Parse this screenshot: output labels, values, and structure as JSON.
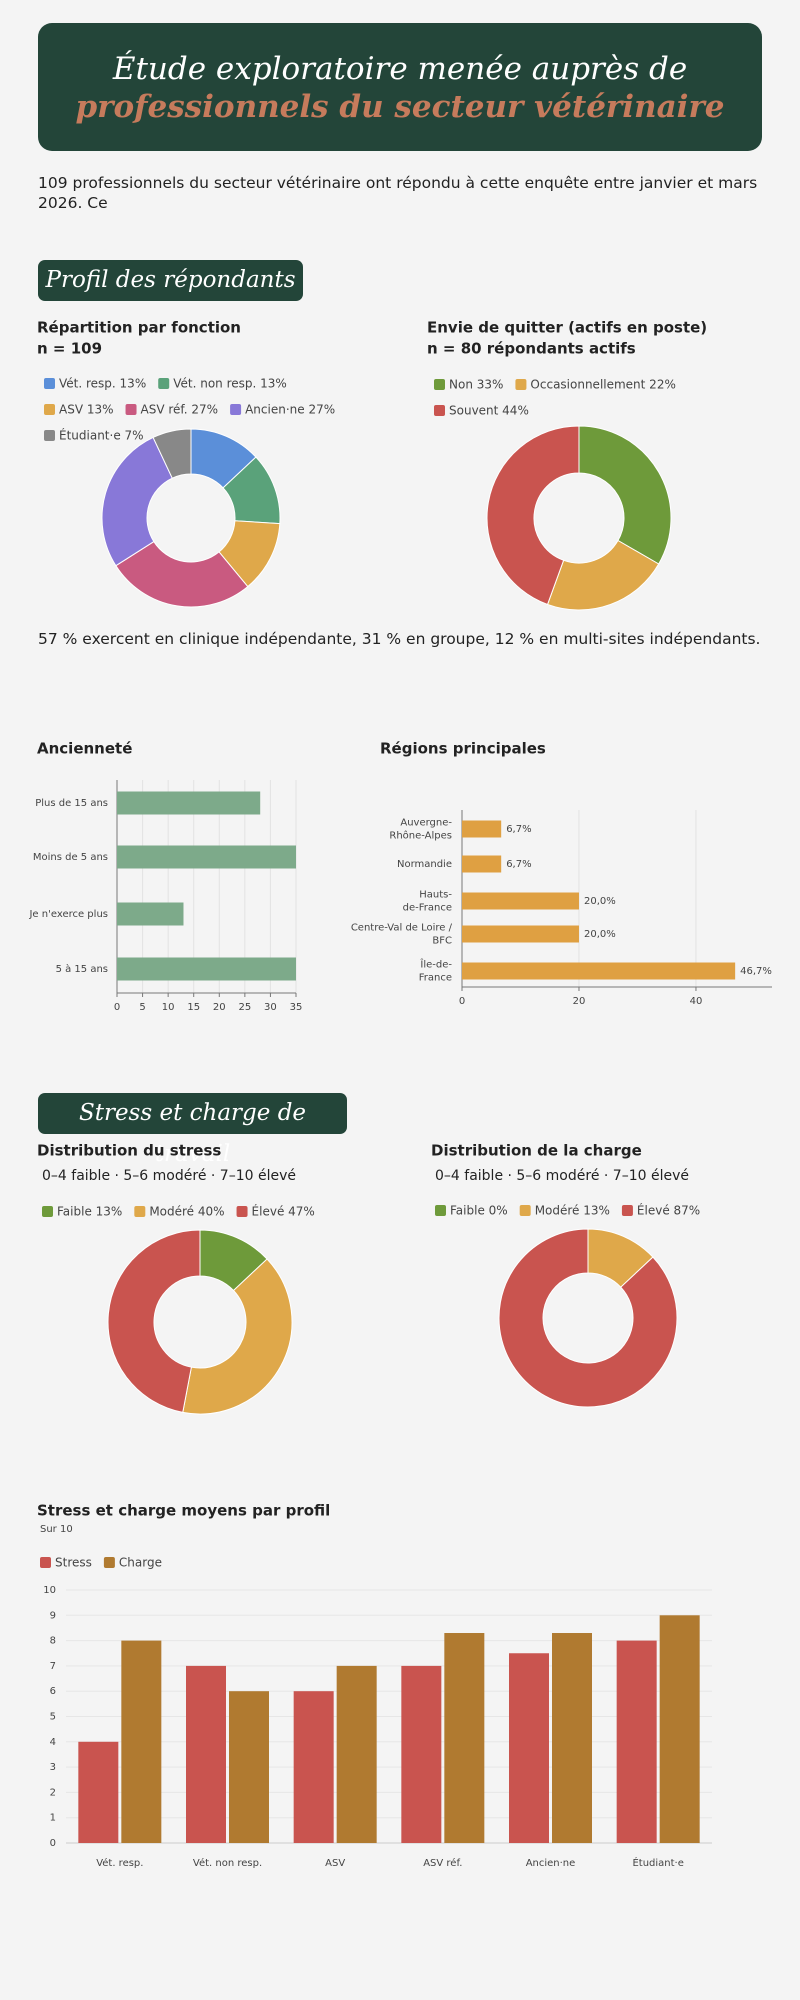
{
  "header": {
    "title_line1": "Étude exploratoire menée auprès de",
    "title_line2": "professionnels du secteur vétérinaire"
  },
  "intro": "109 professionnels du secteur vétérinaire ont répondu à cette enquête entre janvier et mars 2026. Ce",
  "section_titles": [
    "Profil des répondants",
    "Stress et charge de travail"
  ],
  "note": "57 % exercent en clinique indépendante, 31 % en groupe, 12 % en multi-sites indépendants.",
  "chart_data": [
    {
      "type": "doughnut",
      "title": "Répartition par fonction",
      "subtitle": "n = 109",
      "categories": [
        "Vét. resp. 13%",
        "Vét. non resp. 13%",
        "ASV 13%",
        "ASV réf. 27%",
        "Ancien·ne 27%",
        "Étudiant·e 7%"
      ],
      "values": [
        13,
        13,
        13,
        27,
        27,
        7
      ],
      "colors": [
        "#5b8fd9",
        "#5aa27a",
        "#dfa84a",
        "#c95a80",
        "#8878d8",
        "#888888"
      ]
    },
    {
      "type": "doughnut",
      "title": "Envie de quitter (actifs en poste)",
      "subtitle": "n = 80 répondants actifs",
      "categories": [
        "Non 33%",
        "Occasionnellement 22%",
        "Souvent 44%"
      ],
      "values": [
        33,
        22,
        44
      ],
      "colors": [
        "#6e9a3a",
        "#dfa84a",
        "#c9544f"
      ]
    },
    {
      "type": "hbar",
      "title": "Ancienneté",
      "categories": [
        "Plus de 15 ans",
        "Moins de 5 ans",
        "Je n'exerce plus",
        "5 à 15 ans"
      ],
      "values": [
        28,
        35,
        13,
        35
      ],
      "color": "#7daa8a",
      "xlim": [
        0,
        35
      ],
      "xticks": [
        0,
        5,
        10,
        15,
        20,
        25,
        30,
        35
      ],
      "grid": true
    },
    {
      "type": "hbar",
      "title": "Régions principales",
      "categories": [
        [
          "Auvergne-",
          "Rhône-Alpes"
        ],
        [
          "Normandie"
        ],
        [
          "Hauts-",
          "de-France"
        ],
        [
          "Centre-Val de Loire /",
          "BFC"
        ],
        [
          "Île-de-",
          "France"
        ]
      ],
      "values": [
        6.7,
        6.7,
        20,
        20,
        46.7
      ],
      "value_labels": [
        "6,7%",
        "6,7%",
        "20,0%",
        "20,0%",
        "46,7%"
      ],
      "color": "#dfa042",
      "xlim": [
        0,
        53
      ],
      "xticks": [
        0,
        20,
        40
      ],
      "grid": true
    },
    {
      "type": "doughnut",
      "title": "Distribution du stress",
      "subtitle": "0–4 faible · 5–6 modéré · 7–10 élevé",
      "categories": [
        "Faible 13%",
        "Modéré 40%",
        "Élevé 47%"
      ],
      "values": [
        13,
        40,
        47
      ],
      "colors": [
        "#6e9a3a",
        "#dfa84a",
        "#c9544f"
      ]
    },
    {
      "type": "doughnut",
      "title": "Distribution de la charge",
      "subtitle": "0–4 faible · 5–6 modéré · 7–10 élevé",
      "categories": [
        "Faible 0%",
        "Modéré 13%",
        "Élevé 87%"
      ],
      "values": [
        0,
        13,
        87
      ],
      "colors": [
        "#6e9a3a",
        "#dfa84a",
        "#c9544f"
      ]
    },
    {
      "type": "groupedbar",
      "title": "Stress et charge moyens par profil",
      "subtitle": "Sur 10",
      "categories": [
        "Vét. resp.",
        "Vét. non resp.",
        "ASV",
        "ASV réf.",
        "Ancien·ne",
        "Étudiant·e"
      ],
      "series": [
        {
          "name": "Stress",
          "color": "#c9544f",
          "values": [
            4,
            7,
            6,
            7,
            7.5,
            8
          ]
        },
        {
          "name": "Charge",
          "color": "#b07a30",
          "values": [
            8,
            6,
            7,
            8.3,
            8.3,
            9
          ]
        }
      ],
      "ylim": [
        0,
        10
      ],
      "yticks": [
        0,
        1,
        2,
        3,
        4,
        5,
        6,
        7,
        8,
        9,
        10
      ],
      "grid": true
    }
  ]
}
